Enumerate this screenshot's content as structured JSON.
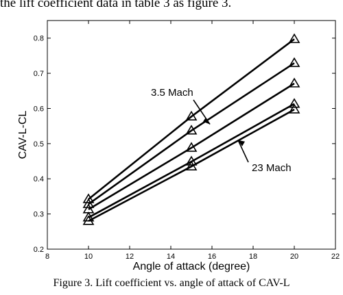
{
  "page": {
    "top_text": "the lift coefficient data in table 3 as figure 3.",
    "caption": "Figure 3.  Lift coefficient vs. angle of attack of CAV-L"
  },
  "chart_data": {
    "type": "line",
    "xlabel": "Angle of attack (degree)",
    "ylabel": "CAV-L-CL",
    "xlim": [
      8,
      22
    ],
    "ylim": [
      0.2,
      0.85
    ],
    "xticks": [
      8,
      10,
      12,
      14,
      16,
      18,
      20,
      22
    ],
    "yticks": [
      0.2,
      0.3,
      0.4,
      0.5,
      0.6,
      0.7,
      0.8
    ],
    "x": [
      10,
      15,
      20
    ],
    "marker": "triangle",
    "grid": false,
    "series": [
      {
        "name": "3.5 Mach",
        "values": [
          0.342,
          0.577,
          0.797
        ]
      },
      {
        "name": "",
        "values": [
          0.328,
          0.537,
          0.729
        ]
      },
      {
        "name": "",
        "values": [
          0.313,
          0.488,
          0.671
        ]
      },
      {
        "name": "",
        "values": [
          0.29,
          0.449,
          0.613
        ]
      },
      {
        "name": "23 Mach",
        "values": [
          0.28,
          0.435,
          0.597
        ]
      }
    ],
    "annotations": [
      {
        "text": "3.5 Mach",
        "series_index": 0
      },
      {
        "text": "23 Mach",
        "series_index": 4
      }
    ]
  }
}
